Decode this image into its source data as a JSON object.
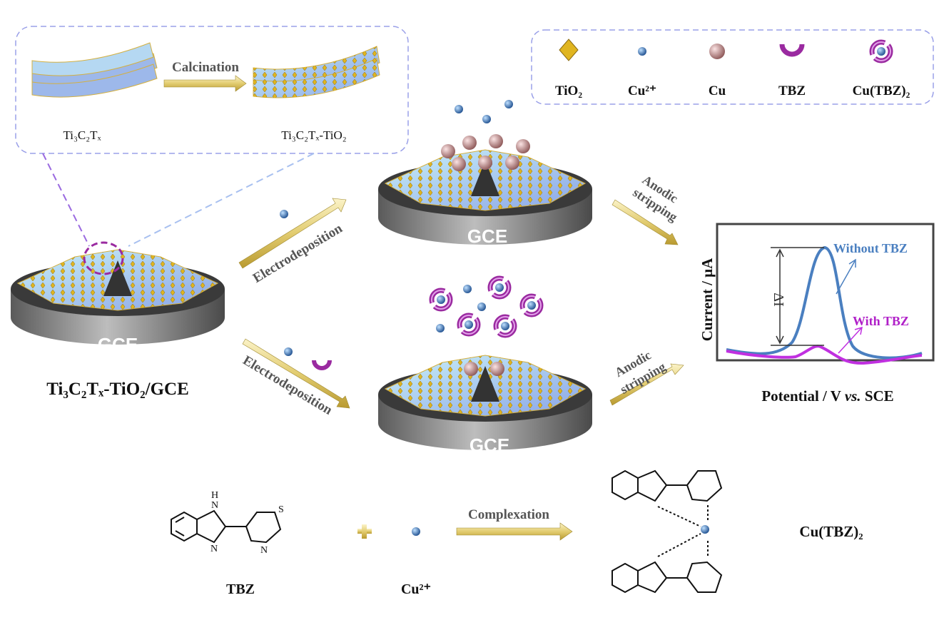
{
  "inset": {
    "precursor": "Ti₃C₂Tₓ",
    "step": "Calcination",
    "product": "Ti₃C₂Tₓ-TiO₂"
  },
  "legend": [
    {
      "icon": "tio2-diamond-icon",
      "label": "TiO₂",
      "color": "#e0b520"
    },
    {
      "icon": "cu-ion-icon",
      "label": "Cu²⁺",
      "color": "#3a78b8"
    },
    {
      "icon": "cu-particle-icon",
      "label": "Cu",
      "color": "#c98f8f"
    },
    {
      "icon": "tbz-icon",
      "label": "TBZ",
      "color": "#9a2aa0"
    },
    {
      "icon": "cu-tbz-complex-icon",
      "label": "Cu(TBZ)₂",
      "color": "#9a2aa0"
    }
  ],
  "electrodes": {
    "base_label": "GCE",
    "modified_label": "Ti₃C₂Tₓ-TiO₂/GCE"
  },
  "steps": {
    "electrodeposition": "Electrodeposition",
    "anodic_stripping_line1": "Anodic",
    "anodic_stripping_line2": "stripping",
    "complexation": "Complexation"
  },
  "plot": {
    "ylabel": "Current / μA",
    "xlabel_prefix": "Potential / V ",
    "xlabel_italic": "vs.",
    "xlabel_suffix": " SCE",
    "delta_label": "ΔI",
    "series": [
      {
        "name": "Without TBZ",
        "color": "#4a7fc0"
      },
      {
        "name": "With TBZ",
        "color": "#c030e0"
      }
    ]
  },
  "reaction": {
    "reactant1": "TBZ",
    "reactant2": "Cu²⁺",
    "product": "Cu(TBZ)₂",
    "atoms": {
      "nh": "H",
      "n": "N",
      "s": "S"
    }
  },
  "colors": {
    "sheet": "#9db8ea",
    "tio2": "#e0b520",
    "cu_ion": "#3a78b8",
    "cu": "#c98f8f",
    "tbz": "#9a2aa0",
    "arrow": "#e6d590"
  }
}
